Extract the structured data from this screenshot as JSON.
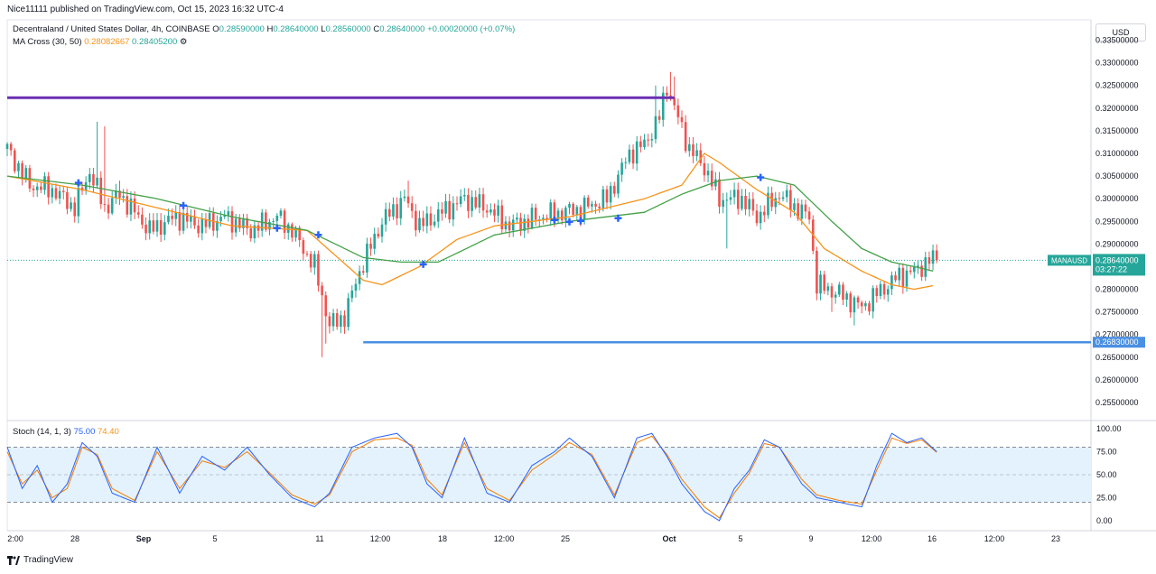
{
  "header": {
    "published": "Nice11111 published on TradingView.com, Oct 15, 2023 16:32 UTC-4"
  },
  "legend": {
    "symbol": "Decentraland / United States Dollar, 4h, COINBASE",
    "ohlc": {
      "o_label": "O",
      "o": "0.28590000",
      "h_label": "H",
      "h": "0.28640000",
      "l_label": "L",
      "l": "0.28560000",
      "c_label": "C",
      "c": "0.28640000",
      "change": "+0.00020000 (+0.07%)"
    },
    "ma": {
      "label": "MA Cross (30, 50)",
      "v1": "0.28082667",
      "v2": "0.28405200",
      "setting": "⚙"
    },
    "stoch": {
      "label": "Stoch (14, 1, 3)",
      "k": "75.00",
      "d": "74.40"
    }
  },
  "currency_button": "USD",
  "price_tags": {
    "symbol_tag": "MANAUSD",
    "last_price": "0.28640000",
    "countdown": "03:27:22",
    "support": "0.26830000"
  },
  "footer": {
    "brand": "TradingView"
  },
  "colors": {
    "up": "#26a69a",
    "down": "#ef5350",
    "ma_fast": "#f7931a",
    "ma_slow": "#43a047",
    "resistance": "#6a2fb3",
    "support": "#4a90e2",
    "stoch_k": "#2962ff",
    "stoch_d": "#f57c00",
    "stoch_band": "#e3f2fd",
    "cross": "#2962ff"
  },
  "chart_data": [
    {
      "type": "candlestick",
      "title": "",
      "ylim": [
        0.251,
        0.3395
      ],
      "y_ticks": [
        "0.33500000",
        "0.33000000",
        "0.32500000",
        "0.32000000",
        "0.31500000",
        "0.31000000",
        "0.30500000",
        "0.30000000",
        "0.29500000",
        "0.29000000",
        "0.28500000",
        "0.28000000",
        "0.27500000",
        "0.27000000",
        "0.26500000",
        "0.26000000",
        "0.25500000"
      ],
      "x_ticks": [
        "2:00",
        "28",
        "Sep",
        "5",
        "11",
        "12:00",
        "18",
        "12:00",
        "25",
        "Oct",
        "5",
        "9",
        "12:00",
        "16",
        "12:00",
        "23"
      ],
      "x_ticks_bold": [
        "Sep",
        "Oct"
      ],
      "anchors_close": [
        [
          0,
          0.311
        ],
        [
          6,
          0.303
        ],
        [
          12,
          0.302
        ],
        [
          18,
          0.298
        ],
        [
          22,
          0.306
        ],
        [
          26,
          0.298
        ],
        [
          30,
          0.301
        ],
        [
          38,
          0.293
        ],
        [
          45,
          0.296
        ],
        [
          52,
          0.294
        ],
        [
          58,
          0.296
        ],
        [
          65,
          0.293
        ],
        [
          72,
          0.296
        ],
        [
          76,
          0.293
        ],
        [
          82,
          0.285
        ],
        [
          86,
          0.272
        ],
        [
          90,
          0.274
        ],
        [
          94,
          0.284
        ],
        [
          100,
          0.295
        ],
        [
          106,
          0.3
        ],
        [
          110,
          0.294
        ],
        [
          116,
          0.297
        ],
        [
          122,
          0.3
        ],
        [
          128,
          0.298
        ],
        [
          134,
          0.294
        ],
        [
          142,
          0.296
        ],
        [
          148,
          0.297
        ],
        [
          154,
          0.298
        ],
        [
          160,
          0.3
        ],
        [
          166,
          0.31
        ],
        [
          170,
          0.312
        ],
        [
          174,
          0.318
        ],
        [
          176,
          0.325
        ],
        [
          178,
          0.32
        ],
        [
          182,
          0.311
        ],
        [
          186,
          0.307
        ],
        [
          190,
          0.3
        ],
        [
          196,
          0.3
        ],
        [
          200,
          0.296
        ],
        [
          206,
          0.301
        ],
        [
          212,
          0.297
        ],
        [
          214,
          0.296
        ],
        [
          216,
          0.281
        ],
        [
          222,
          0.279
        ],
        [
          228,
          0.276
        ],
        [
          232,
          0.279
        ],
        [
          238,
          0.283
        ],
        [
          242,
          0.284
        ],
        [
          246,
          0.2864
        ]
      ],
      "spikes": [
        [
          24,
          0.317
        ],
        [
          26,
          0.316
        ],
        [
          30,
          0.304
        ],
        [
          84,
          0.265
        ],
        [
          85,
          0.268
        ],
        [
          107,
          0.304
        ],
        [
          173,
          0.325
        ],
        [
          177,
          0.328
        ],
        [
          178,
          0.327
        ],
        [
          192,
          0.289
        ],
        [
          220,
          0.275
        ],
        [
          226,
          0.272
        ]
      ],
      "levels": [
        {
          "name": "resistance",
          "price": 0.3223,
          "x_end": 178
        },
        {
          "name": "support",
          "price": 0.2683,
          "x_start": 95
        }
      ],
      "ma_fast_anchors": [
        [
          0,
          0.305
        ],
        [
          20,
          0.302
        ],
        [
          40,
          0.298
        ],
        [
          60,
          0.294
        ],
        [
          80,
          0.293
        ],
        [
          95,
          0.282
        ],
        [
          100,
          0.281
        ],
        [
          110,
          0.285
        ],
        [
          120,
          0.291
        ],
        [
          130,
          0.294
        ],
        [
          150,
          0.296
        ],
        [
          170,
          0.3
        ],
        [
          180,
          0.303
        ],
        [
          186,
          0.31
        ],
        [
          190,
          0.308
        ],
        [
          200,
          0.302
        ],
        [
          210,
          0.297
        ],
        [
          218,
          0.289
        ],
        [
          228,
          0.284
        ],
        [
          236,
          0.281
        ],
        [
          242,
          0.28
        ],
        [
          247,
          0.2808
        ]
      ],
      "ma_slow_anchors": [
        [
          0,
          0.305
        ],
        [
          20,
          0.303
        ],
        [
          40,
          0.3
        ],
        [
          60,
          0.296
        ],
        [
          80,
          0.293
        ],
        [
          95,
          0.287
        ],
        [
          105,
          0.286
        ],
        [
          115,
          0.286
        ],
        [
          130,
          0.292
        ],
        [
          150,
          0.295
        ],
        [
          170,
          0.297
        ],
        [
          180,
          0.301
        ],
        [
          190,
          0.304
        ],
        [
          200,
          0.305
        ],
        [
          210,
          0.303
        ],
        [
          220,
          0.295
        ],
        [
          228,
          0.289
        ],
        [
          236,
          0.286
        ],
        [
          242,
          0.285
        ],
        [
          247,
          0.284
        ]
      ],
      "crosses": [
        [
          19,
          0.3035
        ],
        [
          47,
          0.2985
        ],
        [
          72,
          0.2935
        ],
        [
          83,
          0.292
        ],
        [
          111,
          0.2855
        ],
        [
          146,
          0.2953
        ],
        [
          150,
          0.2949
        ],
        [
          153,
          0.2951
        ],
        [
          163,
          0.2957
        ],
        [
          201,
          0.3047
        ]
      ]
    },
    {
      "type": "line",
      "title": "Stoch (14, 1, 3)",
      "ylim": [
        -5,
        105
      ],
      "y_ticks": [
        "100.00",
        "75.00",
        "50.00",
        "25.00",
        "0.00"
      ],
      "band": [
        20,
        80
      ],
      "k_anchors": [
        [
          0,
          80
        ],
        [
          4,
          35
        ],
        [
          8,
          60
        ],
        [
          12,
          20
        ],
        [
          16,
          40
        ],
        [
          20,
          85
        ],
        [
          24,
          70
        ],
        [
          28,
          30
        ],
        [
          34,
          20
        ],
        [
          40,
          80
        ],
        [
          46,
          30
        ],
        [
          52,
          70
        ],
        [
          58,
          55
        ],
        [
          64,
          80
        ],
        [
          70,
          50
        ],
        [
          76,
          25
        ],
        [
          82,
          15
        ],
        [
          86,
          30
        ],
        [
          92,
          80
        ],
        [
          98,
          90
        ],
        [
          104,
          95
        ],
        [
          108,
          80
        ],
        [
          112,
          40
        ],
        [
          116,
          25
        ],
        [
          122,
          90
        ],
        [
          128,
          30
        ],
        [
          134,
          20
        ],
        [
          140,
          60
        ],
        [
          146,
          75
        ],
        [
          150,
          90
        ],
        [
          156,
          70
        ],
        [
          162,
          25
        ],
        [
          168,
          90
        ],
        [
          172,
          95
        ],
        [
          176,
          70
        ],
        [
          180,
          40
        ],
        [
          186,
          10
        ],
        [
          190,
          0
        ],
        [
          194,
          35
        ],
        [
          198,
          55
        ],
        [
          202,
          88
        ],
        [
          206,
          80
        ],
        [
          212,
          40
        ],
        [
          216,
          25
        ],
        [
          222,
          20
        ],
        [
          228,
          15
        ],
        [
          232,
          60
        ],
        [
          236,
          95
        ],
        [
          240,
          85
        ],
        [
          244,
          90
        ],
        [
          248,
          75
        ]
      ],
      "d_anchors": [
        [
          0,
          75
        ],
        [
          4,
          40
        ],
        [
          8,
          55
        ],
        [
          12,
          25
        ],
        [
          16,
          35
        ],
        [
          20,
          80
        ],
        [
          24,
          72
        ],
        [
          28,
          35
        ],
        [
          34,
          22
        ],
        [
          40,
          75
        ],
        [
          46,
          35
        ],
        [
          52,
          65
        ],
        [
          58,
          58
        ],
        [
          64,
          75
        ],
        [
          70,
          52
        ],
        [
          76,
          28
        ],
        [
          82,
          18
        ],
        [
          86,
          28
        ],
        [
          92,
          75
        ],
        [
          98,
          88
        ],
        [
          104,
          90
        ],
        [
          108,
          82
        ],
        [
          112,
          45
        ],
        [
          116,
          28
        ],
        [
          122,
          85
        ],
        [
          128,
          35
        ],
        [
          134,
          22
        ],
        [
          140,
          55
        ],
        [
          146,
          72
        ],
        [
          150,
          85
        ],
        [
          156,
          72
        ],
        [
          162,
          28
        ],
        [
          168,
          85
        ],
        [
          172,
          92
        ],
        [
          176,
          72
        ],
        [
          180,
          45
        ],
        [
          186,
          15
        ],
        [
          190,
          3
        ],
        [
          194,
          30
        ],
        [
          198,
          52
        ],
        [
          202,
          84
        ],
        [
          206,
          80
        ],
        [
          212,
          45
        ],
        [
          216,
          28
        ],
        [
          222,
          22
        ],
        [
          228,
          18
        ],
        [
          232,
          55
        ],
        [
          236,
          90
        ],
        [
          240,
          84
        ],
        [
          244,
          88
        ],
        [
          248,
          74.4
        ]
      ]
    }
  ]
}
